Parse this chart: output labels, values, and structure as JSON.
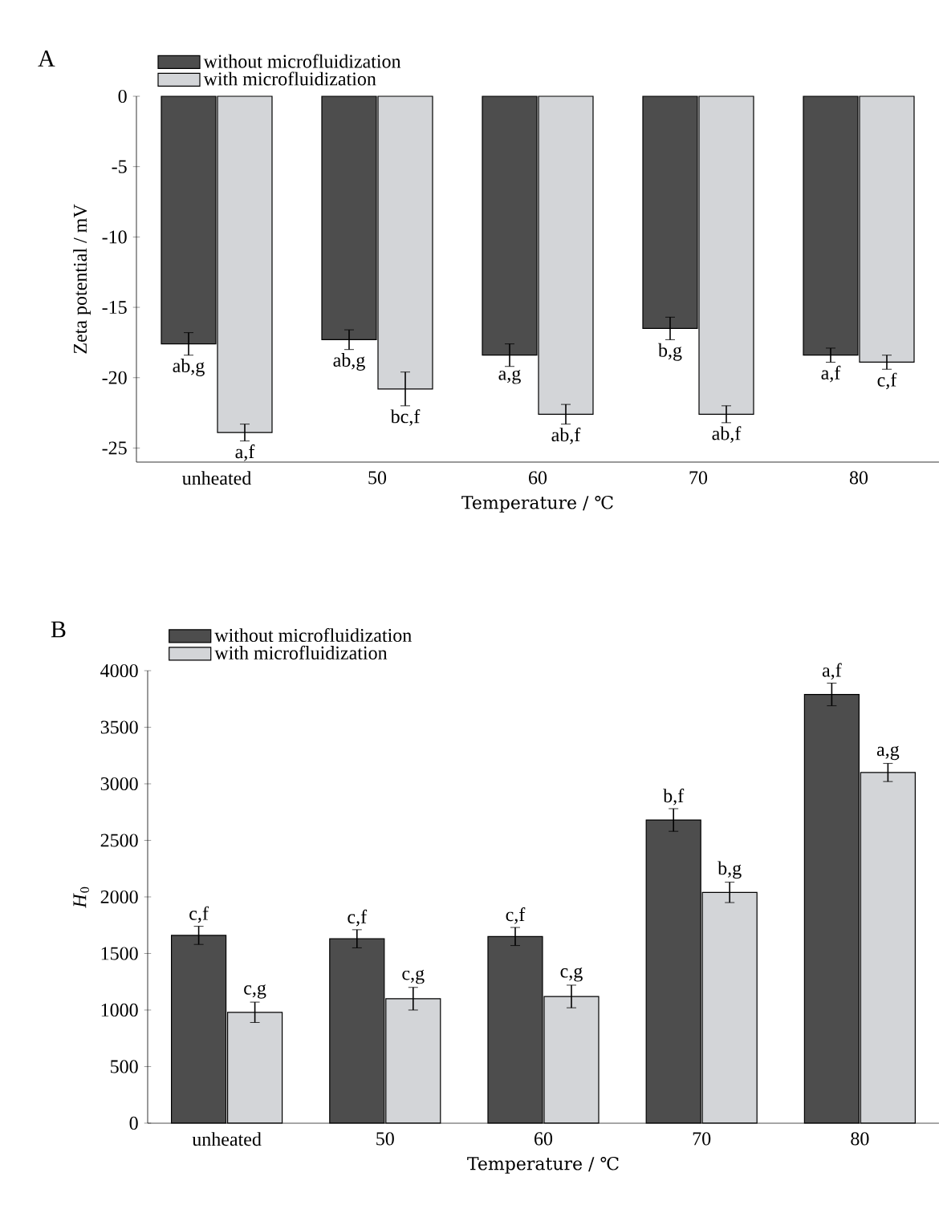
{
  "chart_data": [
    {
      "type": "bar",
      "title": "A",
      "xlabel": "Temperature / ℃",
      "ylabel": "Zeta potential / mV",
      "categories": [
        "unheated",
        "50",
        "60",
        "70",
        "80"
      ],
      "series": [
        {
          "name": "without microfluidization",
          "color": "#4d4d4d",
          "values": [
            -17.6,
            -17.3,
            -18.4,
            -16.5,
            -18.4
          ],
          "errors": [
            0.8,
            0.7,
            0.8,
            0.8,
            0.5
          ]
        },
        {
          "name": "with microfluidization",
          "color": "#d3d5d8",
          "values": [
            -23.9,
            -20.8,
            -22.6,
            -22.6,
            -18.9
          ],
          "errors": [
            0.6,
            1.2,
            0.7,
            0.6,
            0.5
          ]
        }
      ],
      "ylim": [
        -26,
        0
      ],
      "yticks": [
        0,
        -5,
        -10,
        -15,
        -20,
        -25
      ],
      "legend": "top left",
      "annotations": [
        {
          "text": "ab,g",
          "x": "unheated",
          "y": -17.6
        },
        {
          "text": "a,f",
          "x": "unheated",
          "y": -23.9
        },
        {
          "text": "ab,g",
          "x": "50",
          "y": -17.3
        },
        {
          "text": "bc,f",
          "x": "50",
          "y": -20.8
        },
        {
          "text": "a,g",
          "x": "60",
          "y": -18.4
        },
        {
          "text": "ab,f",
          "x": "60",
          "y": -22.6
        },
        {
          "text": "b,g",
          "x": "70",
          "y": -16.5
        },
        {
          "text": "ab,f",
          "x": "70",
          "y": -22.6
        },
        {
          "text": "a,f",
          "x": "80",
          "y": -18.4
        },
        {
          "text": "c,f",
          "x": "80",
          "y": -18.9
        }
      ]
    },
    {
      "type": "bar",
      "title": "B",
      "xlabel": "Temperature / ℃",
      "ylabel": "*H*$_{0}$",
      "categories": [
        "unheated",
        "50",
        "60",
        "70",
        "80"
      ],
      "series": [
        {
          "name": "without microfluidization",
          "color": "#4d4d4d",
          "values": [
            1660,
            1630,
            1650,
            2680,
            3790
          ],
          "errors": [
            80,
            80,
            80,
            100,
            100
          ]
        },
        {
          "name": "with microfluidization",
          "color": "#d3d5d8",
          "values": [
            980,
            1100,
            1120,
            2040,
            3100
          ],
          "errors": [
            90,
            100,
            100,
            90,
            80
          ]
        }
      ],
      "ylim": [
        0,
        4000
      ],
      "yticks": [
        0,
        500,
        1000,
        1500,
        2000,
        2500,
        3000,
        3500,
        4000
      ],
      "legend": "top left",
      "annotations": [
        {
          "text": "c,f",
          "x": "unheated",
          "y": 1660
        },
        {
          "text": "c,g",
          "x": "unheated",
          "y": 980
        },
        {
          "text": "c,f",
          "x": "50",
          "y": 1630
        },
        {
          "text": "c,g",
          "x": "50",
          "y": 1100
        },
        {
          "text": "c,f",
          "x": "60",
          "y": 1650
        },
        {
          "text": "c,g",
          "x": "60",
          "y": 1120
        },
        {
          "text": "b,f",
          "x": "70",
          "y": 2680
        },
        {
          "text": "b,g",
          "x": "70",
          "y": 2040
        },
        {
          "text": "a,f",
          "x": "80",
          "y": 3790
        },
        {
          "text": "a,g",
          "x": "80",
          "y": 3100
        }
      ]
    }
  ]
}
